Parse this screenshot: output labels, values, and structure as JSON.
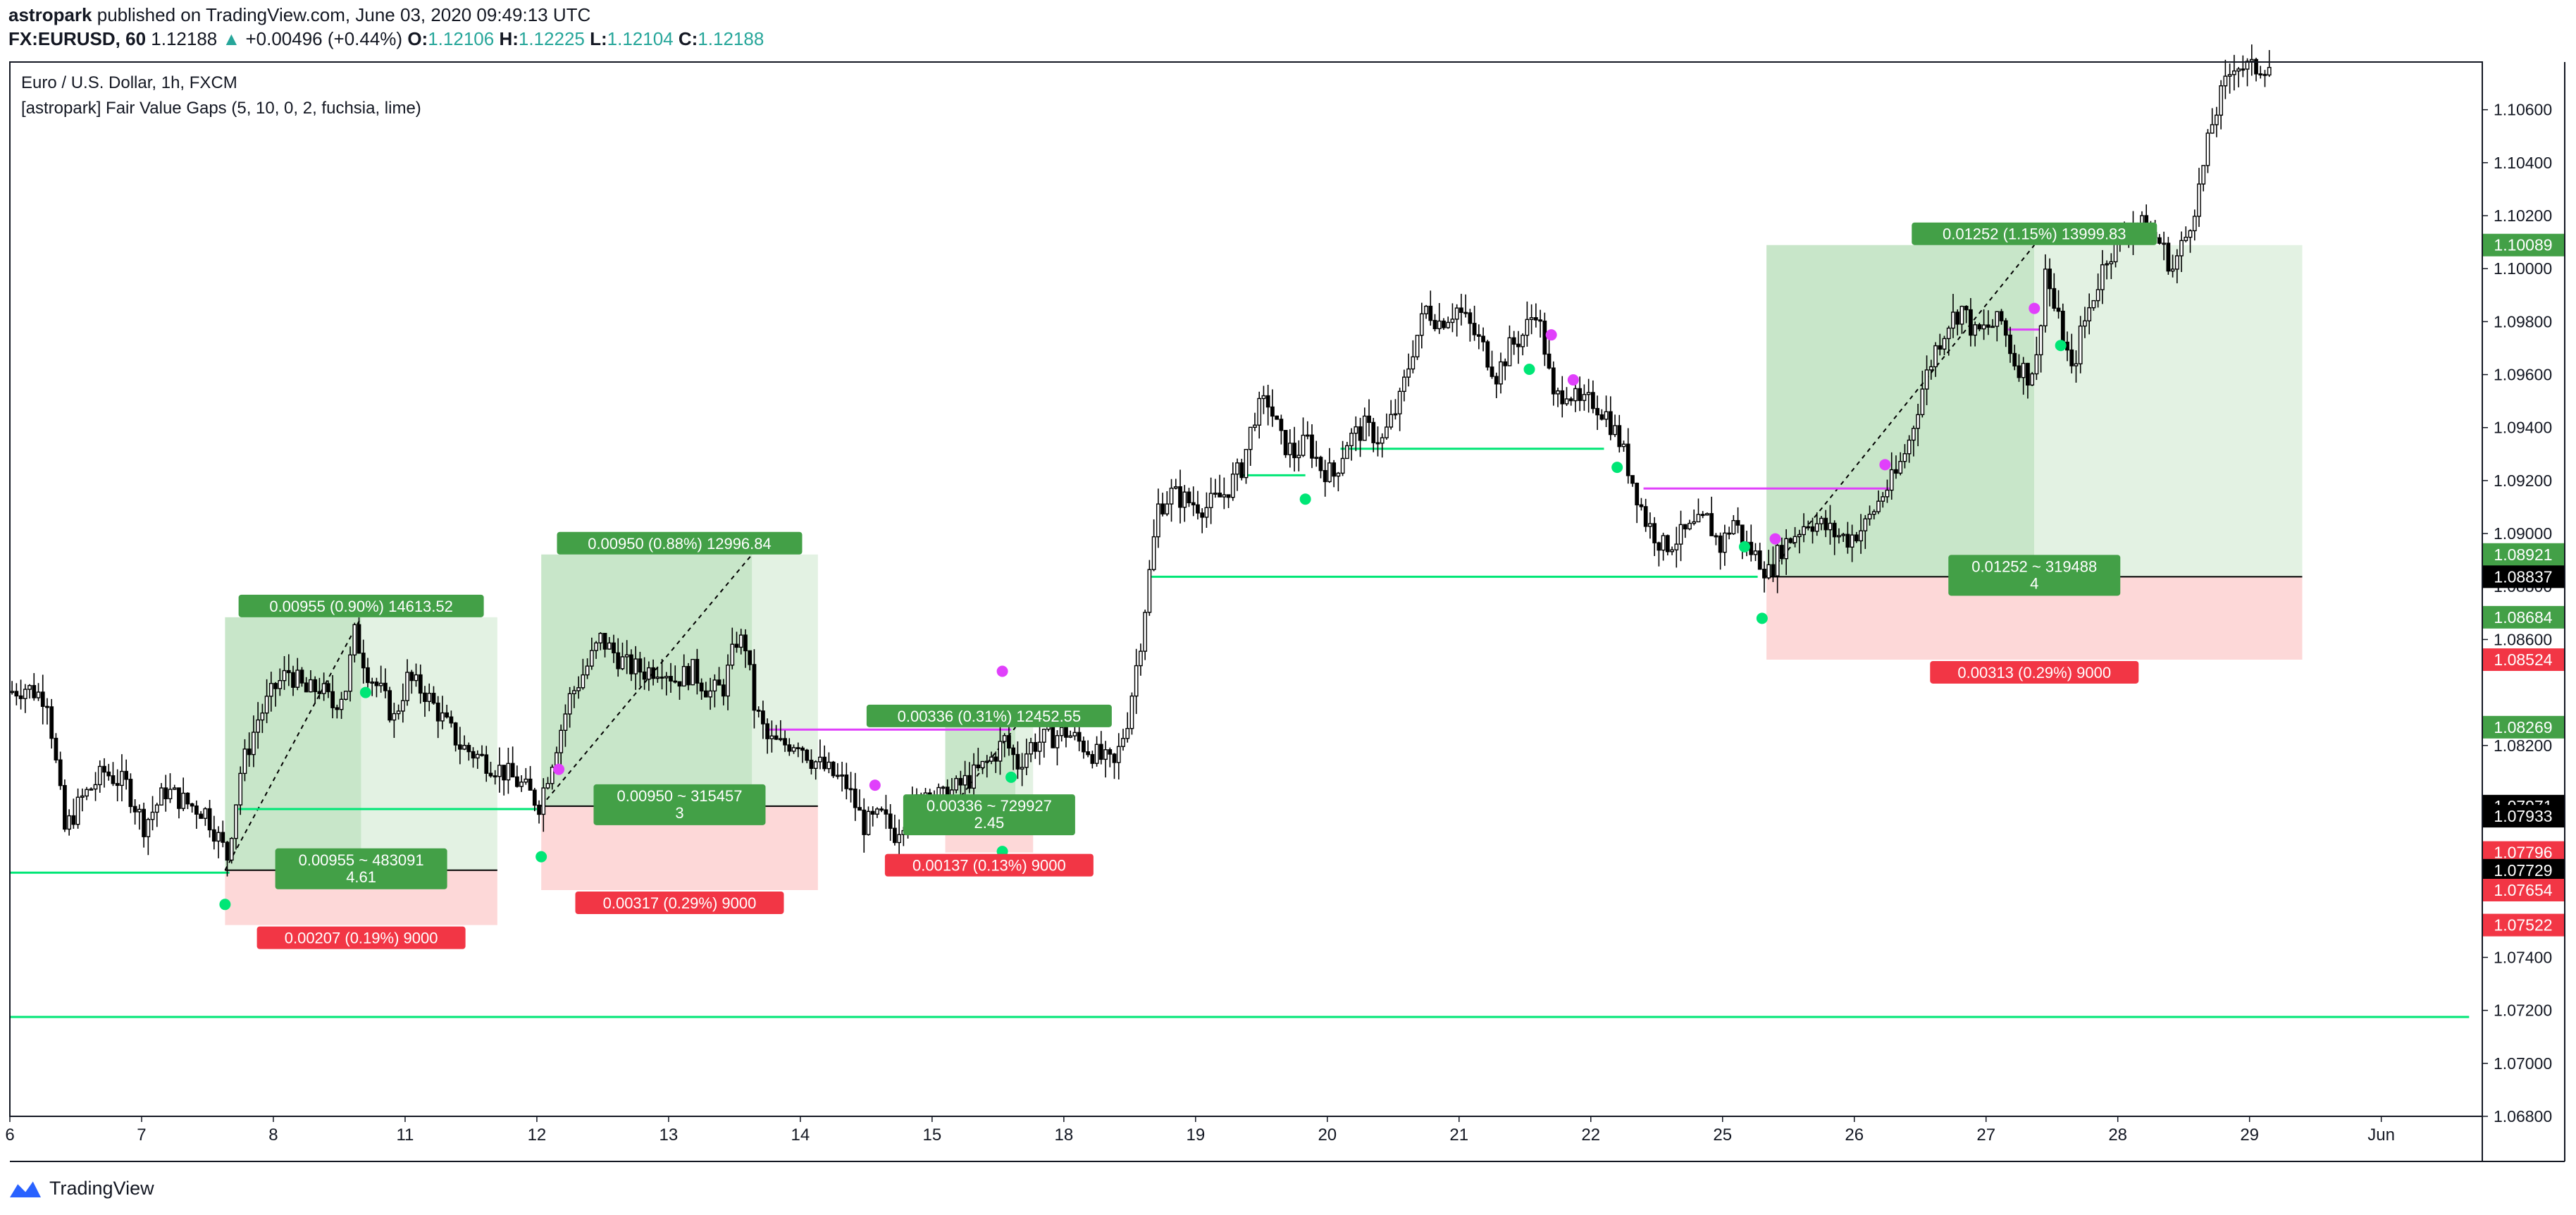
{
  "header": {
    "author": "astropark",
    "published_text": "published on TradingView.com, June 03, 2020 09:49:13 UTC",
    "symbol": "FX:EURUSD, 60",
    "last_price": "1.12188",
    "change_arrow": "▲",
    "change": "+0.00496 (+0.44%)",
    "o_label": "O:",
    "o_value": "1.12106",
    "h_label": "H:",
    "h_value": "1.12225",
    "l_label": "L:",
    "l_value": "1.12104",
    "c_label": "C:",
    "c_value": "1.12188"
  },
  "legend": {
    "title": "Euro / U.S. Dollar, 1h, FXCM",
    "indicator": "[astropark] Fair Value Gaps (5, 10, 0, 2, fuchsia, lime)"
  },
  "footer": {
    "brand": "TradingView"
  },
  "colors": {
    "up_bar": "#ffffff",
    "down_bar": "#000000",
    "line_green": "#00e676",
    "line_fuchsia": "#e040fb",
    "profit_zone": "#c8e6c9",
    "profit_zone_light": "#e3f2e3",
    "loss_zone": "#fdd8d8",
    "label_green": "#43a047",
    "label_red": "#f23645"
  },
  "chart_data": {
    "type": "candlestick",
    "y_axis": {
      "ylim": [
        1.068,
        1.1078
      ],
      "ticks": [
        "1.10600",
        "1.10400",
        "1.10200",
        "1.10000",
        "1.09800",
        "1.09600",
        "1.09400",
        "1.09200",
        "1.09000",
        "1.08800",
        "1.08600",
        "1.08200",
        "1.07400",
        "1.07200",
        "1.07000",
        "1.06800"
      ]
    },
    "x_axis": {
      "labels": [
        {
          "t": 0,
          "label": "6"
        },
        {
          "t": 30,
          "label": "7"
        },
        {
          "t": 60,
          "label": "8"
        },
        {
          "t": 90,
          "label": "11"
        },
        {
          "t": 120,
          "label": "12"
        },
        {
          "t": 150,
          "label": "13"
        },
        {
          "t": 180,
          "label": "14"
        },
        {
          "t": 210,
          "label": "15"
        },
        {
          "t": 240,
          "label": "18"
        },
        {
          "t": 270,
          "label": "19"
        },
        {
          "t": 300,
          "label": "20"
        },
        {
          "t": 330,
          "label": "21"
        },
        {
          "t": 360,
          "label": "22"
        },
        {
          "t": 390,
          "label": "25"
        },
        {
          "t": 420,
          "label": "26"
        },
        {
          "t": 450,
          "label": "27"
        },
        {
          "t": 480,
          "label": "28"
        },
        {
          "t": 510,
          "label": "29"
        },
        {
          "t": 540,
          "label": "Jun"
        }
      ]
    },
    "price_path": [
      [
        0,
        1.084
      ],
      [
        4,
        1.0842
      ],
      [
        9,
        1.0838
      ],
      [
        13,
        1.0788
      ],
      [
        17,
        1.08
      ],
      [
        22,
        1.081
      ],
      [
        27,
        1.0805
      ],
      [
        31,
        1.079
      ],
      [
        36,
        1.0803
      ],
      [
        41,
        1.0798
      ],
      [
        45,
        1.0795
      ],
      [
        48,
        1.0785
      ],
      [
        50,
        1.0778
      ],
      [
        53,
        1.081
      ],
      [
        57,
        1.083
      ],
      [
        61,
        1.0842
      ],
      [
        64,
        1.0848
      ],
      [
        68,
        1.084
      ],
      [
        71,
        1.0842
      ],
      [
        74,
        1.0835
      ],
      [
        77,
        1.0842
      ],
      [
        79,
        1.0862
      ],
      [
        82,
        1.0848
      ],
      [
        85,
        1.084
      ],
      [
        88,
        1.083
      ],
      [
        91,
        1.0845
      ],
      [
        95,
        1.084
      ],
      [
        99,
        1.083
      ],
      [
        103,
        1.082
      ],
      [
        108,
        1.0815
      ],
      [
        113,
        1.081
      ],
      [
        117,
        1.0805
      ],
      [
        121,
        1.0798
      ],
      [
        124,
        1.0815
      ],
      [
        128,
        1.0838
      ],
      [
        132,
        1.085
      ],
      [
        135,
        1.086
      ],
      [
        138,
        1.0855
      ],
      [
        141,
        1.085
      ],
      [
        145,
        1.0848
      ],
      [
        149,
        1.085
      ],
      [
        152,
        1.0845
      ],
      [
        156,
        1.0848
      ],
      [
        160,
        1.084
      ],
      [
        163,
        1.0842
      ],
      [
        166,
        1.086
      ],
      [
        168,
        1.0858
      ],
      [
        170,
        1.0835
      ],
      [
        173,
        1.0822
      ],
      [
        176,
        1.082
      ],
      [
        180,
        1.0822
      ],
      [
        183,
        1.0815
      ],
      [
        187,
        1.081
      ],
      [
        191,
        1.0805
      ],
      [
        195,
        1.079
      ],
      [
        199,
        1.0793
      ],
      [
        202,
        1.0787
      ],
      [
        205,
        1.0795
      ],
      [
        209,
        1.0803
      ],
      [
        213,
        1.08
      ],
      [
        217,
        1.0805
      ],
      [
        221,
        1.081
      ],
      [
        224,
        1.0815
      ],
      [
        227,
        1.0822
      ],
      [
        230,
        1.0813
      ],
      [
        233,
        1.082
      ],
      [
        237,
        1.0823
      ],
      [
        241,
        1.0825
      ],
      [
        245,
        1.082
      ],
      [
        249,
        1.0815
      ],
      [
        252,
        1.0812
      ],
      [
        255,
        1.083
      ],
      [
        258,
        1.086
      ],
      [
        260,
        1.0885
      ],
      [
        262,
        1.091
      ],
      [
        265,
        1.0915
      ],
      [
        269,
        1.0912
      ],
      [
        273,
        1.091
      ],
      [
        277,
        1.0915
      ],
      [
        281,
        1.0925
      ],
      [
        284,
        1.0945
      ],
      [
        287,
        1.095
      ],
      [
        290,
        1.0935
      ],
      [
        293,
        1.093
      ],
      [
        296,
        1.0935
      ],
      [
        299,
        1.0925
      ],
      [
        302,
        1.0922
      ],
      [
        305,
        1.0935
      ],
      [
        309,
        1.094
      ],
      [
        313,
        1.0935
      ],
      [
        317,
        1.095
      ],
      [
        320,
        1.097
      ],
      [
        323,
        1.0985
      ],
      [
        326,
        1.098
      ],
      [
        330,
        1.0985
      ],
      [
        333,
        1.0978
      ],
      [
        336,
        1.097
      ],
      [
        339,
        1.096
      ],
      [
        342,
        1.097
      ],
      [
        345,
        1.0975
      ],
      [
        348,
        1.0985
      ],
      [
        350,
        1.097
      ],
      [
        352,
        1.095
      ],
      [
        355,
        1.0955
      ],
      [
        358,
        1.0948
      ],
      [
        361,
        1.095
      ],
      [
        364,
        1.0945
      ],
      [
        367,
        1.0935
      ],
      [
        370,
        1.092
      ],
      [
        373,
        1.0905
      ],
      [
        377,
        1.0895
      ],
      [
        380,
        1.0898
      ],
      [
        384,
        1.0902
      ],
      [
        387,
        1.0905
      ],
      [
        390,
        1.0895
      ],
      [
        393,
        1.0905
      ],
      [
        396,
        1.0895
      ],
      [
        399,
        1.089
      ],
      [
        401,
        1.0885
      ],
      [
        404,
        1.0895
      ],
      [
        407,
        1.09
      ],
      [
        410,
        1.0905
      ],
      [
        413,
        1.0903
      ],
      [
        416,
        1.09
      ],
      [
        419,
        1.0898
      ],
      [
        423,
        1.0903
      ],
      [
        427,
        1.0915
      ],
      [
        430,
        1.0922
      ],
      [
        433,
        1.0935
      ],
      [
        436,
        1.0955
      ],
      [
        439,
        1.097
      ],
      [
        442,
        1.098
      ],
      [
        445,
        1.0985
      ],
      [
        448,
        1.0975
      ],
      [
        451,
        1.0978
      ],
      [
        454,
        1.098
      ],
      [
        457,
        1.0965
      ],
      [
        460,
        1.096
      ],
      [
        462,
        1.0965
      ],
      [
        464,
        1.1
      ],
      [
        466,
        1.0985
      ],
      [
        468,
        1.0975
      ],
      [
        470,
        1.096
      ],
      [
        472,
        1.0975
      ],
      [
        475,
        1.099
      ],
      [
        478,
        1.1005
      ],
      [
        481,
        1.101
      ],
      [
        484,
        1.1018
      ],
      [
        487,
        1.1015
      ],
      [
        490,
        1.101
      ],
      [
        493,
        1.1
      ],
      [
        496,
        1.1012
      ],
      [
        499,
        1.103
      ],
      [
        502,
        1.1055
      ],
      [
        504,
        1.1065
      ],
      [
        507,
        1.1078
      ],
      [
        511,
        1.1075
      ],
      [
        514,
        1.1077
      ]
    ],
    "horizontal_levels": [
      {
        "color": "lime",
        "y": 1.0772,
        "t1": 0,
        "t2": 50
      },
      {
        "color": "lime",
        "y": 1.0796,
        "t1": 52,
        "t2": 120
      },
      {
        "color": "lime",
        "y": 1.07175,
        "t1": 0,
        "t2": 560
      },
      {
        "color": "lime",
        "y": 1.0922,
        "t1": 280,
        "t2": 295
      },
      {
        "color": "lime",
        "y": 1.0932,
        "t1": 303,
        "t2": 363
      },
      {
        "color": "lime",
        "y": 1.08837,
        "t1": 260,
        "t2": 398
      },
      {
        "color": "fuchsia",
        "y": 1.0826,
        "t1": 172,
        "t2": 228
      },
      {
        "color": "fuchsia",
        "y": 1.0917,
        "t1": 372,
        "t2": 428
      },
      {
        "color": "fuchsia",
        "y": 1.0977,
        "t1": 455,
        "t2": 463
      }
    ],
    "markers": [
      {
        "color": "lime",
        "t": 49,
        "y": 1.076
      },
      {
        "color": "lime",
        "t": 81,
        "y": 1.084
      },
      {
        "color": "lime",
        "t": 121,
        "y": 1.0778
      },
      {
        "color": "fuchsia",
        "t": 125,
        "y": 1.0811
      },
      {
        "color": "fuchsia",
        "t": 197,
        "y": 1.0805
      },
      {
        "color": "lime",
        "t": 226,
        "y": 1.078
      },
      {
        "color": "fuchsia",
        "t": 226,
        "y": 1.0848
      },
      {
        "color": "lime",
        "t": 228,
        "y": 1.0808
      },
      {
        "color": "lime",
        "t": 295,
        "y": 1.0913
      },
      {
        "color": "lime",
        "t": 346,
        "y": 1.0962
      },
      {
        "color": "fuchsia",
        "t": 351,
        "y": 1.0975
      },
      {
        "color": "fuchsia",
        "t": 356,
        "y": 1.0958
      },
      {
        "color": "lime",
        "t": 366,
        "y": 1.0925
      },
      {
        "color": "lime",
        "t": 395,
        "y": 1.0895
      },
      {
        "color": "lime",
        "t": 399,
        "y": 1.0868
      },
      {
        "color": "fuchsia",
        "t": 402,
        "y": 1.0898
      },
      {
        "color": "fuchsia",
        "t": 427,
        "y": 1.0926
      },
      {
        "color": "fuchsia",
        "t": 461,
        "y": 1.0985
      },
      {
        "color": "lime",
        "t": 467,
        "y": 1.0971
      }
    ],
    "positions": [
      {
        "t1": 49,
        "tmid": 80,
        "t2": 111,
        "entry": 1.07729,
        "target": 1.08684,
        "stop": 1.07522,
        "target_label": "0.00955 (0.90%) 14613.52",
        "center_label1": "0.00955 ~ 483091",
        "center_label2": "4.61",
        "stop_label": "0.00207 (0.19%) 9000"
      },
      {
        "t1": 121,
        "tmid": 169,
        "t2": 184,
        "entry": 1.07971,
        "target": 1.08921,
        "stop": 1.07654,
        "target_label": "0.00950 (0.88%) 12996.84",
        "center_label1": "0.00950 ~ 315457",
        "center_label2": "3",
        "stop_label": "0.00317 (0.29%) 9000"
      },
      {
        "t1": 213,
        "tmid": 229,
        "t2": 233,
        "entry": 1.07933,
        "target": 1.08269,
        "stop": 1.07796,
        "target_label": "0.00336 (0.31%) 12452.55",
        "center_label1": "0.00336 ~ 729927",
        "center_label2": "2.45",
        "stop_label": "0.00137 (0.13%) 9000"
      },
      {
        "t1": 400,
        "tmid": 461,
        "t2": 522,
        "entry": 1.08837,
        "target": 1.10089,
        "stop": 1.08524,
        "target_label": "0.01252 (1.15%) 13999.83",
        "center_label1": "0.01252 ~ 319488",
        "center_label2": "4",
        "stop_label": "0.00313 (0.29%) 9000"
      }
    ],
    "axis_price_labels": [
      {
        "value": "1.10089",
        "y": 1.10089,
        "bg": "#43a047",
        "fg": "#ffffff"
      },
      {
        "value": "1.08921",
        "y": 1.08921,
        "bg": "#43a047",
        "fg": "#ffffff"
      },
      {
        "value": "1.08837",
        "y": 1.08837,
        "bg": "#000000",
        "fg": "#ffffff"
      },
      {
        "value": "1.08684",
        "y": 1.08684,
        "bg": "#43a047",
        "fg": "#ffffff"
      },
      {
        "value": "1.08524",
        "y": 1.08524,
        "bg": "#f23645",
        "fg": "#ffffff"
      },
      {
        "value": "1.08269",
        "y": 1.08269,
        "bg": "#43a047",
        "fg": "#ffffff"
      },
      {
        "value": "1.07971",
        "y": 1.07971,
        "bg": "#000000",
        "fg": "#ffffff"
      },
      {
        "value": "1.07933",
        "y": 1.07933,
        "bg": "#000000",
        "fg": "#ffffff"
      },
      {
        "value": "1.07796",
        "y": 1.07796,
        "bg": "#f23645",
        "fg": "#ffffff"
      },
      {
        "value": "1.07729",
        "y": 1.07729,
        "bg": "#000000",
        "fg": "#ffffff"
      },
      {
        "value": "1.07654",
        "y": 1.07654,
        "bg": "#f23645",
        "fg": "#ffffff"
      },
      {
        "value": "1.07522",
        "y": 1.07522,
        "bg": "#f23645",
        "fg": "#ffffff"
      }
    ]
  }
}
